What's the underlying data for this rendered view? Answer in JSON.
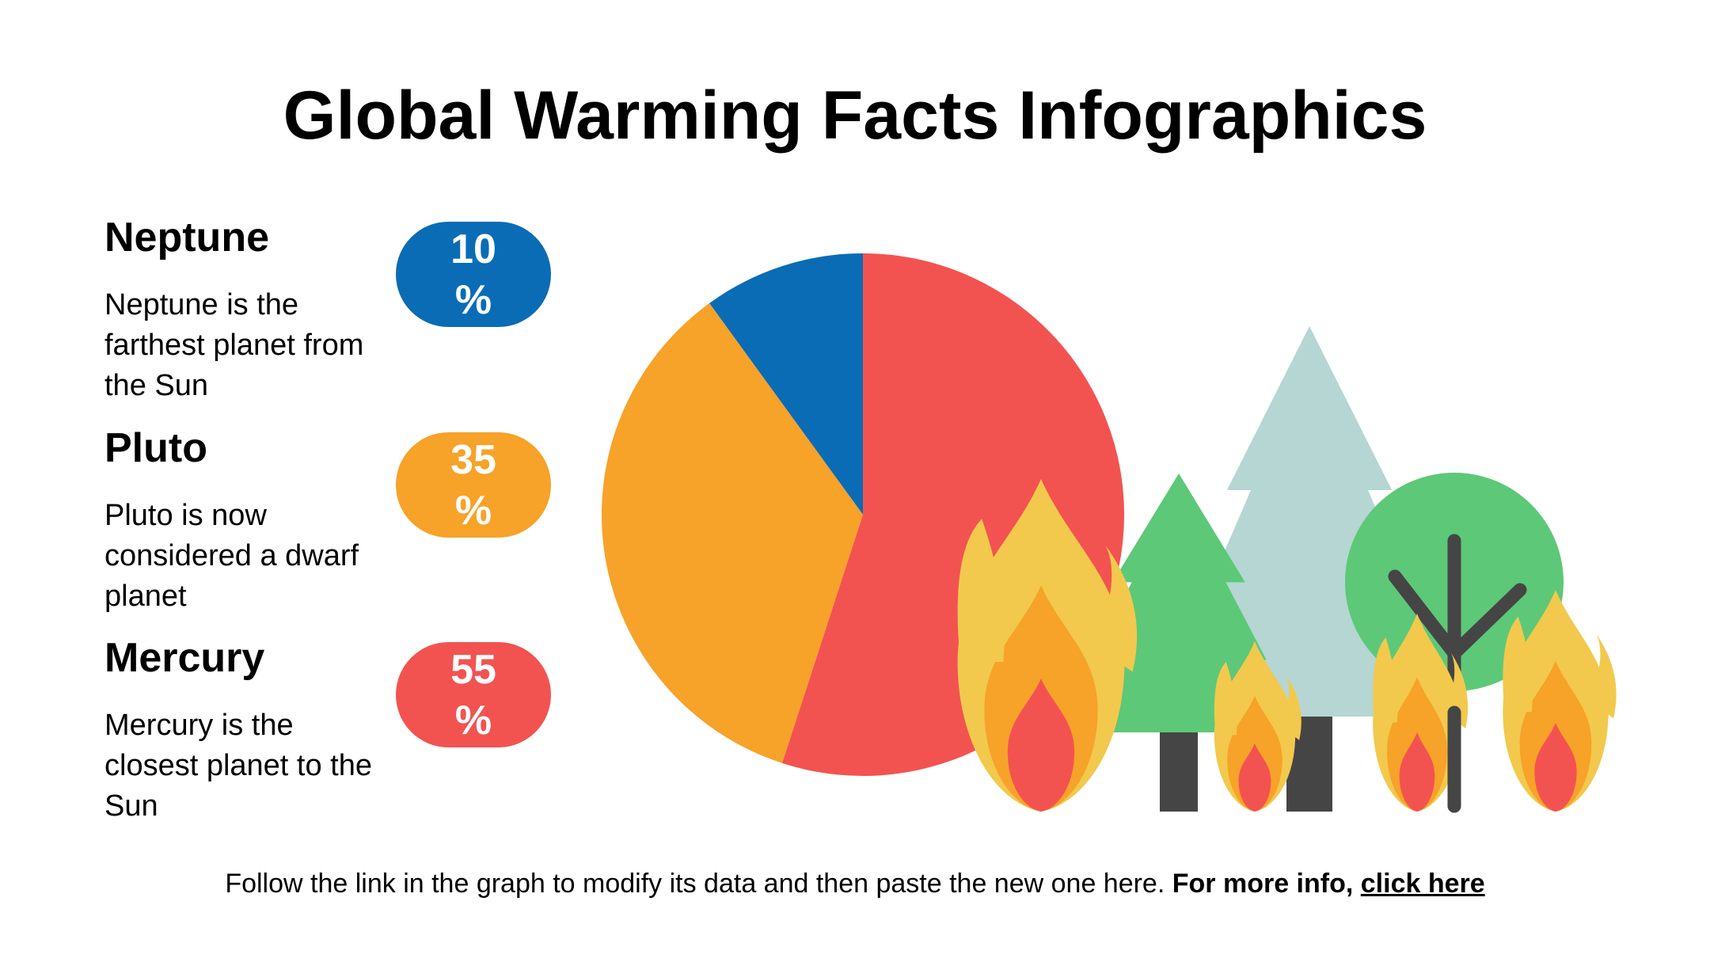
{
  "title": "Global Warming Facts Infographics",
  "colors": {
    "blue": "#0a6cb5",
    "orange": "#f7a229",
    "red": "#f25350",
    "flame_outer": "#f2c94c",
    "tree_green": "#5dc878",
    "tree_pale": "#b5d6d3",
    "trunk": "#454545"
  },
  "items": [
    {
      "name": "Neptune",
      "value": "10",
      "unit": "%",
      "description": "Neptune is the farthest planet from the Sun",
      "color": "#0a6cb5"
    },
    {
      "name": "Pluto",
      "value": "35",
      "unit": "%",
      "description": "Pluto is now considered a dwarf planet",
      "color": "#f7a229"
    },
    {
      "name": "Mercury",
      "value": "55",
      "unit": "%",
      "description": "Mercury is the closest planet to the Sun",
      "color": "#f25350"
    }
  ],
  "chart_data": {
    "type": "pie",
    "start_angle": "12 o'clock",
    "direction": "counter-clockwise",
    "slices": [
      {
        "label": "Neptune",
        "value": 10,
        "color": "#0a6cb5"
      },
      {
        "label": "Pluto",
        "value": 35,
        "color": "#f7a229"
      },
      {
        "label": "Mercury",
        "value": 55,
        "color": "#f25350"
      }
    ]
  },
  "illustration": {
    "icons": [
      "flame-icon",
      "pine-tree-icon",
      "round-tree-icon"
    ]
  },
  "footer": {
    "text": "Follow the link in the graph to modify its data and then paste the new one here.",
    "bold": "For more info,",
    "link": "click here"
  }
}
